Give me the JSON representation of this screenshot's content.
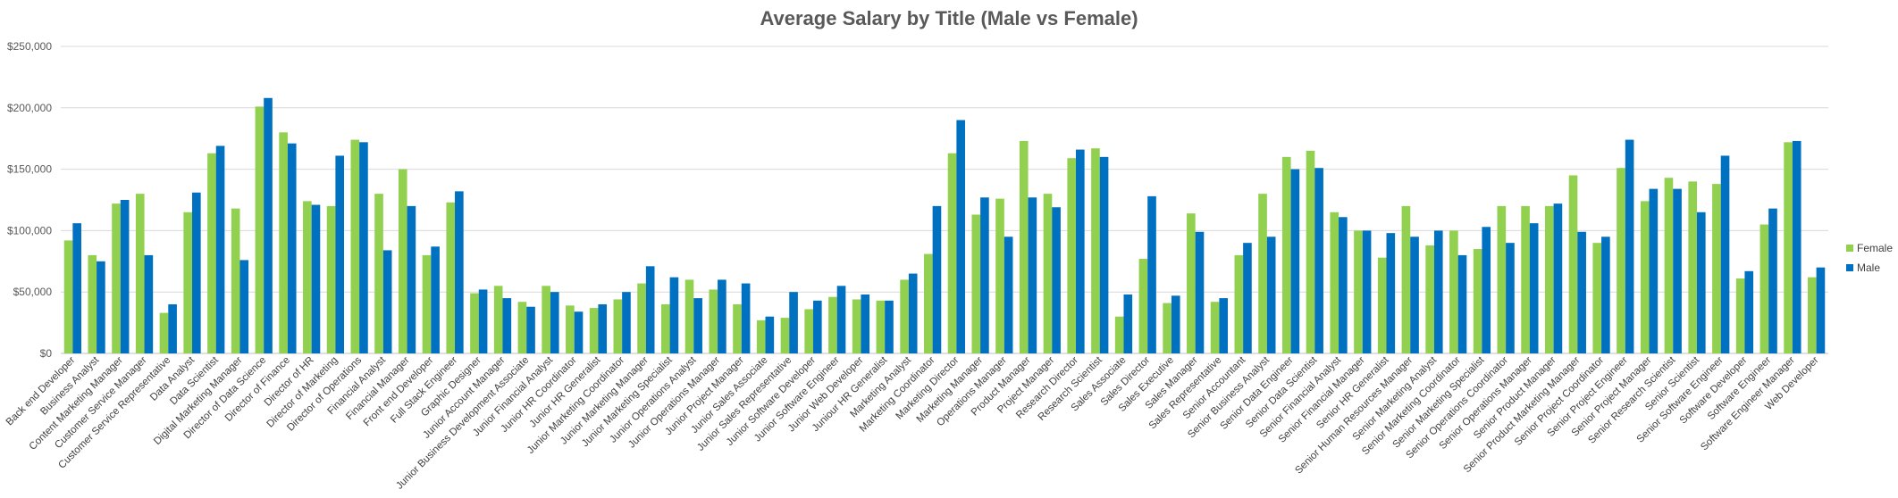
{
  "chart_data": {
    "type": "bar",
    "title": "Average Salary by Title (Male vs Female)",
    "xlabel": "",
    "ylabel": "",
    "ylim": [
      0,
      250000
    ],
    "y_ticks": [
      "$0",
      "$50,000",
      "$100,000",
      "$150,000",
      "$200,000",
      "$250,000"
    ],
    "grid": true,
    "legend_position": "right",
    "categories": [
      "Back end Developer",
      "Business Analyst",
      "Content Marketing Manager",
      "Customer Service Manager",
      "Customer Service Representative",
      "Data Analyst",
      "Data Scientist",
      "Digital Marketing Manager",
      "Director of Data Science",
      "Director of Finance",
      "Director of HR",
      "Director of Marketing",
      "Director of Operations",
      "Financial Analyst",
      "Financial Manager",
      "Front end Developer",
      "Full Stack Engineer",
      "Graphic Designer",
      "Junior Account Manager",
      "Junior Business Development Associate",
      "Junior Financial Analyst",
      "Junior HR Coordinator",
      "Junior HR Generalist",
      "Junior Marketing Coordinator",
      "Junior Marketing Manager",
      "Junior Marketing Specialist",
      "Junior Operations Analyst",
      "Junior Operations Manager",
      "Junior Project Manager",
      "Junior Sales Associate",
      "Junior Sales Representative",
      "Junior Software Developer",
      "Junior Software Engineer",
      "Junior Web Developer",
      "Juniour HR Generalist",
      "Marketing Analyst",
      "Marketing Coordinator",
      "Marketing Director",
      "Marketing Manager",
      "Operations Manager",
      "Product Manager",
      "Project Manager",
      "Research Director",
      "Research Scientist",
      "Sales Associate",
      "Sales Director",
      "Sales Executive",
      "Sales Manager",
      "Sales Representative",
      "Senior Accountant",
      "Senior Business Analyst",
      "Senior Data Engineer",
      "Senior Data Scientist",
      "Senior Financial Analyst",
      "Senior Financial Manager",
      "Senior HR Generalist",
      "Senior Human Resources Manager",
      "Senior Marketing Analyst",
      "Senior Marketing Coordinator",
      "Senior Marketing Specialist",
      "Senior Operations Coordinator",
      "Senior Operations Manager",
      "Senior Product Manager",
      "Senior Product Marketing Manager",
      "Senior Project Coordinator",
      "Senior Project Engineer",
      "Senior Project Manager",
      "Senior Research Scientist",
      "Senior Scientist",
      "Senior Software Engineer",
      "Software Developer",
      "Software Engineer",
      "Software Engineer Manager",
      "Web Developer"
    ],
    "series": [
      {
        "name": "Female",
        "color": "#92D050",
        "values": [
          92000,
          80000,
          122000,
          130000,
          33000,
          115000,
          163000,
          118000,
          201000,
          180000,
          124000,
          120000,
          174000,
          130000,
          150000,
          80000,
          123000,
          49000,
          55000,
          42000,
          55000,
          39000,
          37000,
          44000,
          57000,
          40000,
          60000,
          52000,
          40000,
          27000,
          29000,
          36000,
          46000,
          44000,
          43000,
          60000,
          81000,
          163000,
          113000,
          126000,
          173000,
          130000,
          159000,
          167000,
          30000,
          77000,
          41000,
          114000,
          42000,
          80000,
          130000,
          160000,
          165000,
          115000,
          100000,
          78000,
          120000,
          88000,
          100000,
          85000,
          120000,
          120000,
          120000,
          145000,
          90000,
          151000,
          124000,
          143000,
          140000,
          138000,
          61000,
          105000,
          172000,
          62000
        ]
      },
      {
        "name": "Male",
        "color": "#0070C0",
        "values": [
          106000,
          75000,
          125000,
          80000,
          40000,
          131000,
          169000,
          76000,
          208000,
          171000,
          121000,
          161000,
          172000,
          84000,
          120000,
          87000,
          132000,
          52000,
          45000,
          38000,
          50000,
          34000,
          40000,
          50000,
          71000,
          62000,
          45000,
          60000,
          57000,
          30000,
          50000,
          43000,
          55000,
          48000,
          43000,
          65000,
          120000,
          190000,
          127000,
          95000,
          127000,
          119000,
          166000,
          160000,
          48000,
          128000,
          47000,
          99000,
          45000,
          90000,
          95000,
          150000,
          151000,
          111000,
          100000,
          98000,
          95000,
          100000,
          80000,
          103000,
          90000,
          106000,
          122000,
          99000,
          95000,
          174000,
          134000,
          134000,
          115000,
          161000,
          67000,
          118000,
          173000,
          70000
        ]
      }
    ]
  }
}
